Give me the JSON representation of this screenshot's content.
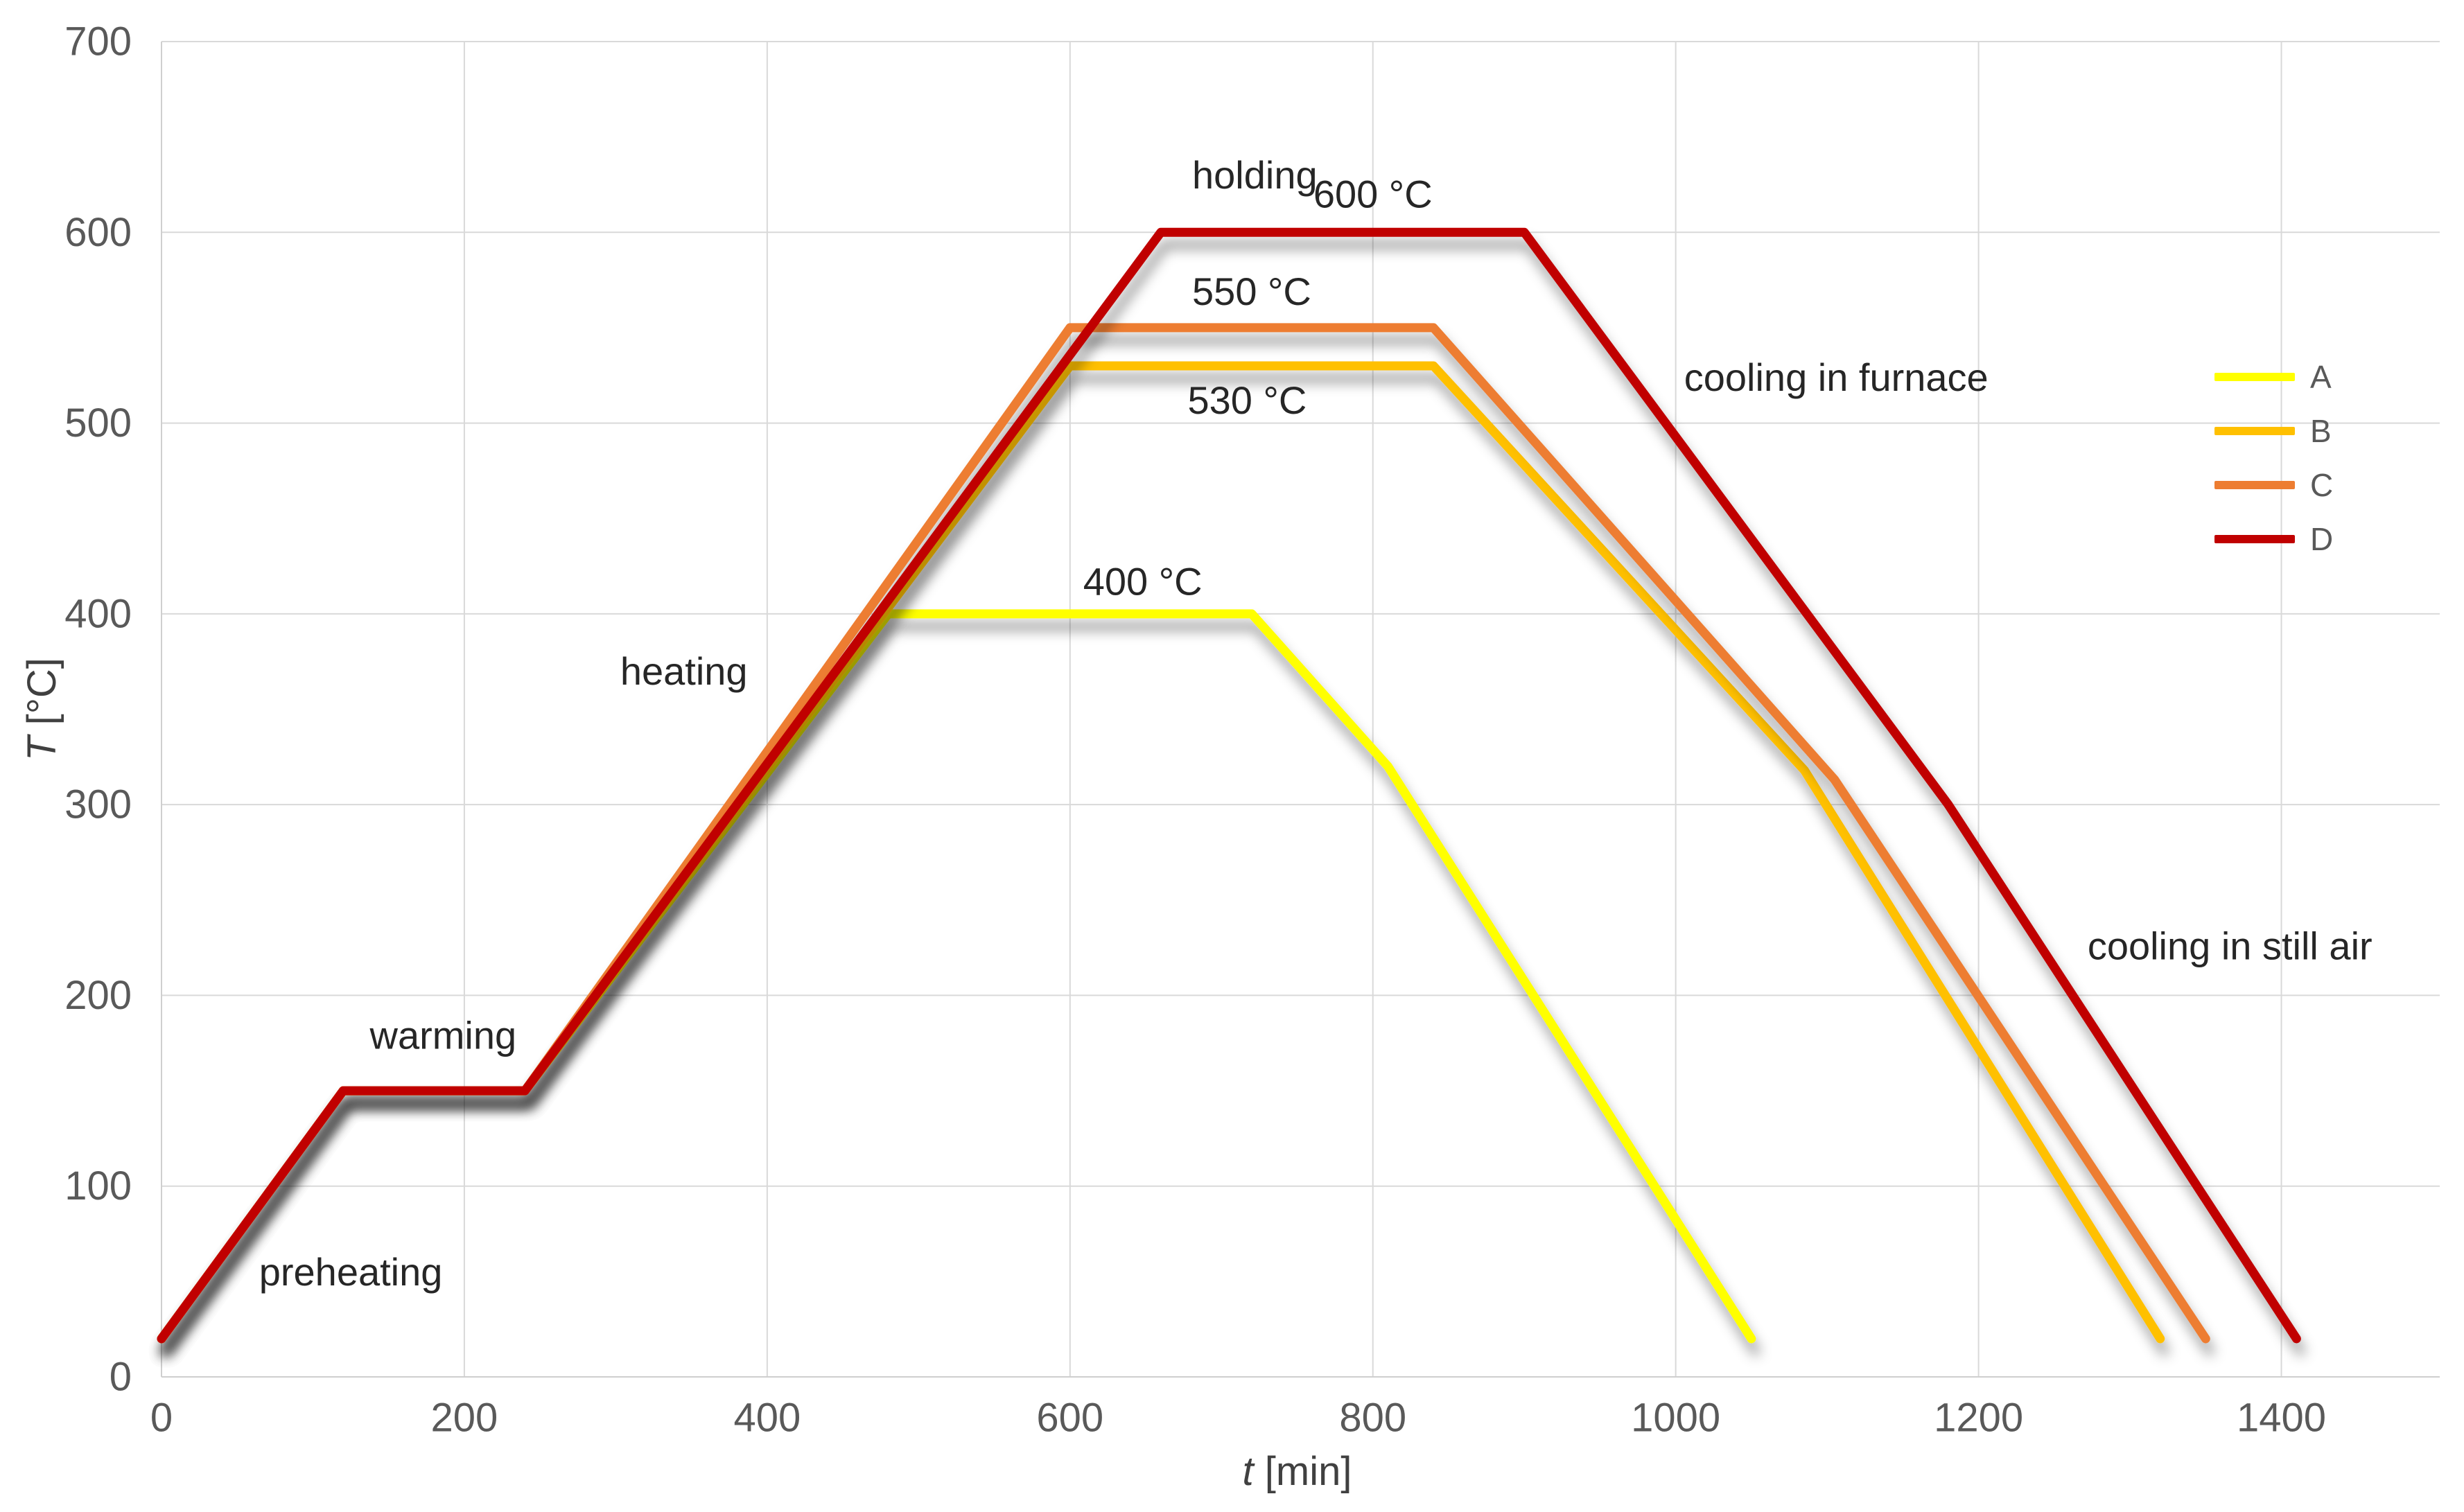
{
  "chart_data": {
    "type": "line",
    "title": "",
    "xlabel": "t [min]",
    "ylabel": "T [°C]",
    "xlabel_symbol": "t",
    "xlabel_unit": " [min]",
    "ylabel_symbol": "T",
    "ylabel_unit": " [°C]",
    "xlim": [
      0,
      1500
    ],
    "ylim": [
      0,
      700
    ],
    "x_ticks": [
      0,
      200,
      400,
      600,
      800,
      1000,
      1200,
      1400
    ],
    "y_ticks": [
      0,
      100,
      200,
      300,
      400,
      500,
      600,
      700
    ],
    "grid": true,
    "legend_position": "right",
    "series": [
      {
        "name": "A",
        "color": "#FFFF00",
        "points": [
          [
            0,
            20
          ],
          [
            120,
            150
          ],
          [
            240,
            150
          ],
          [
            480,
            400
          ],
          [
            720,
            400
          ],
          [
            810,
            320
          ],
          [
            1050,
            20
          ]
        ]
      },
      {
        "name": "B",
        "color": "#FFC000",
        "points": [
          [
            0,
            20
          ],
          [
            120,
            150
          ],
          [
            240,
            150
          ],
          [
            600,
            530
          ],
          [
            840,
            530
          ],
          [
            1085,
            318
          ],
          [
            1320,
            20
          ]
        ]
      },
      {
        "name": "C",
        "color": "#ED7D31",
        "points": [
          [
            0,
            20
          ],
          [
            120,
            150
          ],
          [
            240,
            150
          ],
          [
            600,
            550
          ],
          [
            840,
            550
          ],
          [
            1105,
            313
          ],
          [
            1350,
            20
          ]
        ]
      },
      {
        "name": "D",
        "color": "#C00000",
        "points": [
          [
            0,
            20
          ],
          [
            120,
            150
          ],
          [
            240,
            150
          ],
          [
            660,
            600
          ],
          [
            900,
            600
          ],
          [
            1180,
            300
          ],
          [
            1410,
            20
          ]
        ]
      }
    ],
    "annotations": [
      {
        "text": "preheating",
        "t": 125,
        "T": 55
      },
      {
        "text": "warming",
        "t": 186,
        "T": 179
      },
      {
        "text": "heating",
        "t": 345,
        "T": 370
      },
      {
        "text": "holding",
        "t": 722,
        "T": 630
      },
      {
        "text": "600 °C",
        "t": 800,
        "T": 620
      },
      {
        "text": "550 °C",
        "t": 720,
        "T": 569
      },
      {
        "text": "530 °C",
        "t": 717,
        "T": 512
      },
      {
        "text": "400 °C",
        "t": 648,
        "T": 417
      },
      {
        "text": "cooling in furnace",
        "t": 1106,
        "T": 524
      },
      {
        "text": "cooling in still air",
        "t": 1366,
        "T": 226
      }
    ],
    "grid_color": "#d9d9d9",
    "tick_color": "#595959",
    "annotation_color": "#262626",
    "background": "#ffffff"
  }
}
